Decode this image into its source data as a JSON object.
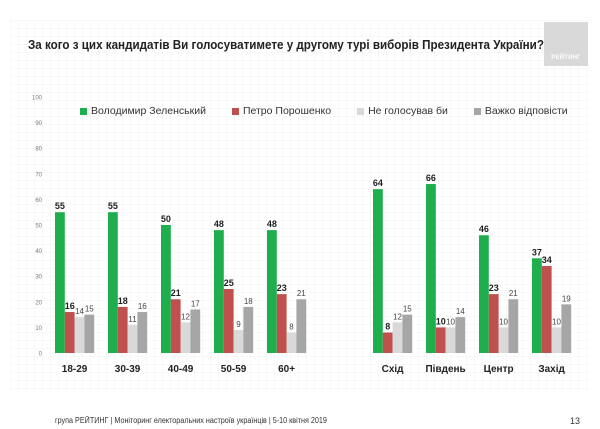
{
  "page": {
    "title": "За кого з цих кандидатів Ви голосуватимете у другому турі виборів Президента України?",
    "logo_text": "РЕЙТИНГ",
    "footer": "група РЕЙТИНГ | Моніторинг електоральних настроїв українців  |  5-10 квітня  2019",
    "page_number": "13"
  },
  "colors": {
    "zelensky": "#1fae4e",
    "poroshenko": "#c0504d",
    "not_vote": "#d9d9d9",
    "hard_to_say": "#a6a6a6"
  },
  "chart_data": {
    "type": "bar",
    "title": "За кого з цих кандидатів Ви голосуватимете у другому турі виборів Президента України?",
    "xlabel": "",
    "ylabel": "",
    "ylim": [
      0,
      100
    ],
    "yticks": [
      0,
      10,
      20,
      30,
      40,
      50,
      60,
      70,
      80,
      90,
      100
    ],
    "grid": false,
    "legend_position": "top",
    "category_groups": [
      [
        "18-29",
        "30-39",
        "40-49",
        "50-59",
        "60+"
      ],
      [
        "Схід",
        "Південь",
        "Центр",
        "Захід"
      ]
    ],
    "categories": [
      "18-29",
      "30-39",
      "40-49",
      "50-59",
      "60+",
      "Схід",
      "Південь",
      "Центр",
      "Захід"
    ],
    "series": [
      {
        "name": "Володимир Зеленський",
        "color_key": "zelensky",
        "values": [
          55,
          55,
          50,
          48,
          48,
          64,
          66,
          46,
          37
        ],
        "label_bold": true
      },
      {
        "name": "Петро Порошенко",
        "color_key": "poroshenko",
        "values": [
          16,
          18,
          21,
          25,
          23,
          8,
          10,
          23,
          34
        ],
        "label_bold": true
      },
      {
        "name": "Не голосував би",
        "color_key": "not_vote",
        "values": [
          14,
          11,
          12,
          9,
          8,
          12,
          10,
          10,
          10
        ],
        "label_bold": false
      },
      {
        "name": "Важко відповісти",
        "color_key": "hard_to_say",
        "values": [
          15,
          16,
          17,
          18,
          21,
          15,
          14,
          21,
          19
        ],
        "label_bold": false
      }
    ]
  }
}
